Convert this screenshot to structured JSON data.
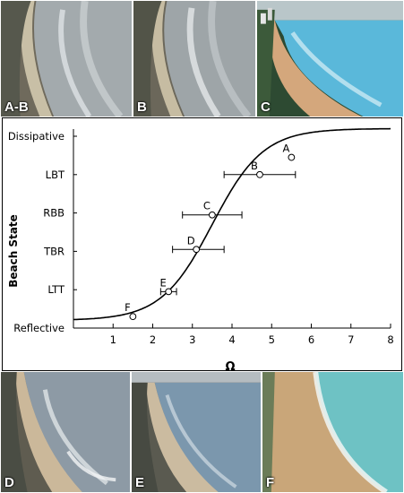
{
  "photos_top": [
    {
      "label": "A-B",
      "tone": "#9ea5a8"
    },
    {
      "label": "B",
      "tone": "#9aa2a6"
    },
    {
      "label": "C",
      "tone": "#58b7d8"
    }
  ],
  "photos_bottom": [
    {
      "label": "D",
      "tone": "#8c9aa6"
    },
    {
      "label": "E",
      "tone": "#7b97ad"
    },
    {
      "label": "F",
      "tone": "#6ec2c4"
    }
  ],
  "chart_data": {
    "type": "scatter",
    "xlabel": "Ω",
    "ylabel": "Beach State",
    "xlim": [
      0,
      8
    ],
    "xticks": [
      "1",
      "2",
      "3",
      "4",
      "5",
      "6",
      "7",
      "8"
    ],
    "ycategories": [
      "Reflective",
      "LTT",
      "TBR",
      "RBB",
      "LBT",
      "Dissipative"
    ],
    "grid": false,
    "points": [
      {
        "label": "F",
        "x": 1.5,
        "y": 0.3,
        "xerr": null
      },
      {
        "label": "E",
        "x": 2.4,
        "y": 0.95,
        "xerr": [
          2.2,
          2.6
        ]
      },
      {
        "label": "D",
        "x": 3.1,
        "y": 2.05,
        "xerr": [
          2.5,
          3.8
        ]
      },
      {
        "label": "C",
        "x": 3.5,
        "y": 2.95,
        "xerr": [
          2.75,
          4.25
        ]
      },
      {
        "label": "B",
        "x": 4.7,
        "y": 4.0,
        "xerr": [
          3.8,
          5.6
        ]
      },
      {
        "label": "A",
        "x": 5.5,
        "y": 4.45,
        "xerr": null
      }
    ]
  }
}
